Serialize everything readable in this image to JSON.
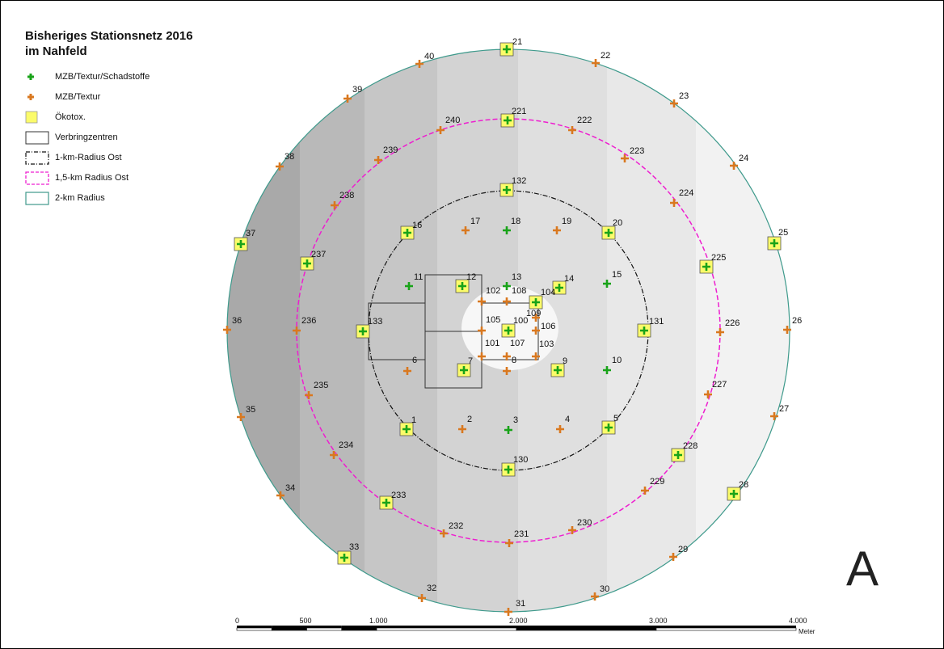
{
  "title": {
    "line1": "Bisheriges Stationsnetz 2016",
    "line2": "im Nahfeld"
  },
  "legend": [
    {
      "key": "mzb_schad",
      "label": "MZB/Textur/Schadstoffe",
      "color": "#19a319"
    },
    {
      "key": "mzb_textur",
      "label": "MZB/Textur",
      "color": "#d9781f"
    },
    {
      "key": "oekotox",
      "label": "Ökotox.",
      "color": "#fbfb6a"
    },
    {
      "key": "verbringzentren",
      "label": "Verbringzentren",
      "color": "#333333"
    },
    {
      "key": "r1",
      "label": "1-km-Radius Ost",
      "color": "#111111"
    },
    {
      "key": "r15",
      "label": "1,5-km Radius Ost",
      "color": "#ee1ed0"
    },
    {
      "key": "r2",
      "label": "2-km Radius",
      "color": "#3f9a8c"
    }
  ],
  "scalebar": {
    "ticks": [
      "0",
      "500",
      "1.000",
      "2.000",
      "3.000",
      "4.000"
    ],
    "unit": "Meter"
  },
  "panel_letter": "A",
  "stations": [
    {
      "id": "21",
      "t": "g",
      "o": true
    },
    {
      "id": "22",
      "t": "o"
    },
    {
      "id": "23",
      "t": "o"
    },
    {
      "id": "24",
      "t": "o"
    },
    {
      "id": "25",
      "t": "g",
      "o": true
    },
    {
      "id": "26",
      "t": "o"
    },
    {
      "id": "27",
      "t": "o"
    },
    {
      "id": "28",
      "t": "g",
      "o": true
    },
    {
      "id": "29",
      "t": "o"
    },
    {
      "id": "30",
      "t": "o"
    },
    {
      "id": "31",
      "t": "o"
    },
    {
      "id": "32",
      "t": "o"
    },
    {
      "id": "33",
      "t": "g",
      "o": true
    },
    {
      "id": "34",
      "t": "o"
    },
    {
      "id": "35",
      "t": "o"
    },
    {
      "id": "36",
      "t": "o"
    },
    {
      "id": "37",
      "t": "g",
      "o": true
    },
    {
      "id": "38",
      "t": "o"
    },
    {
      "id": "39",
      "t": "o"
    },
    {
      "id": "40",
      "t": "o"
    },
    {
      "id": "221",
      "t": "g",
      "o": true
    },
    {
      "id": "222",
      "t": "o"
    },
    {
      "id": "223",
      "t": "o"
    },
    {
      "id": "224",
      "t": "o"
    },
    {
      "id": "225",
      "t": "g",
      "o": true
    },
    {
      "id": "226",
      "t": "o"
    },
    {
      "id": "227",
      "t": "o"
    },
    {
      "id": "228",
      "t": "g",
      "o": true
    },
    {
      "id": "229",
      "t": "o"
    },
    {
      "id": "230",
      "t": "o"
    },
    {
      "id": "231",
      "t": "o"
    },
    {
      "id": "232",
      "t": "o"
    },
    {
      "id": "233",
      "t": "g",
      "o": true
    },
    {
      "id": "234",
      "t": "o"
    },
    {
      "id": "235",
      "t": "o"
    },
    {
      "id": "236",
      "t": "o"
    },
    {
      "id": "237",
      "t": "g",
      "o": true
    },
    {
      "id": "238",
      "t": "o"
    },
    {
      "id": "239",
      "t": "o"
    },
    {
      "id": "240",
      "t": "o"
    },
    {
      "id": "132",
      "t": "g",
      "o": true
    },
    {
      "id": "20",
      "t": "g",
      "o": true
    },
    {
      "id": "131",
      "t": "g",
      "o": true
    },
    {
      "id": "5",
      "t": "g",
      "o": true
    },
    {
      "id": "130",
      "t": "g",
      "o": true
    },
    {
      "id": "1",
      "t": "g",
      "o": true
    },
    {
      "id": "133",
      "t": "g",
      "o": true
    },
    {
      "id": "16",
      "t": "g",
      "o": true
    },
    {
      "id": "17",
      "t": "o"
    },
    {
      "id": "18",
      "t": "g"
    },
    {
      "id": "19",
      "t": "o"
    },
    {
      "id": "11",
      "t": "g"
    },
    {
      "id": "12",
      "t": "g",
      "o": true
    },
    {
      "id": "13",
      "t": "g"
    },
    {
      "id": "14",
      "t": "g",
      "o": true
    },
    {
      "id": "15",
      "t": "g"
    },
    {
      "id": "102",
      "t": "o"
    },
    {
      "id": "108",
      "t": "o"
    },
    {
      "id": "104",
      "t": "g",
      "o": true
    },
    {
      "id": "109",
      "t": "o"
    },
    {
      "id": "105",
      "t": "o"
    },
    {
      "id": "100",
      "t": "g",
      "o": true
    },
    {
      "id": "106",
      "t": "o"
    },
    {
      "id": "101",
      "t": "o"
    },
    {
      "id": "107",
      "t": "o"
    },
    {
      "id": "103",
      "t": "o"
    },
    {
      "id": "6",
      "t": "o"
    },
    {
      "id": "7",
      "t": "g",
      "o": true
    },
    {
      "id": "8",
      "t": "o"
    },
    {
      "id": "9",
      "t": "g",
      "o": true
    },
    {
      "id": "10",
      "t": "g"
    },
    {
      "id": "2",
      "t": "o"
    },
    {
      "id": "3",
      "t": "g"
    },
    {
      "id": "4",
      "t": "o"
    }
  ]
}
